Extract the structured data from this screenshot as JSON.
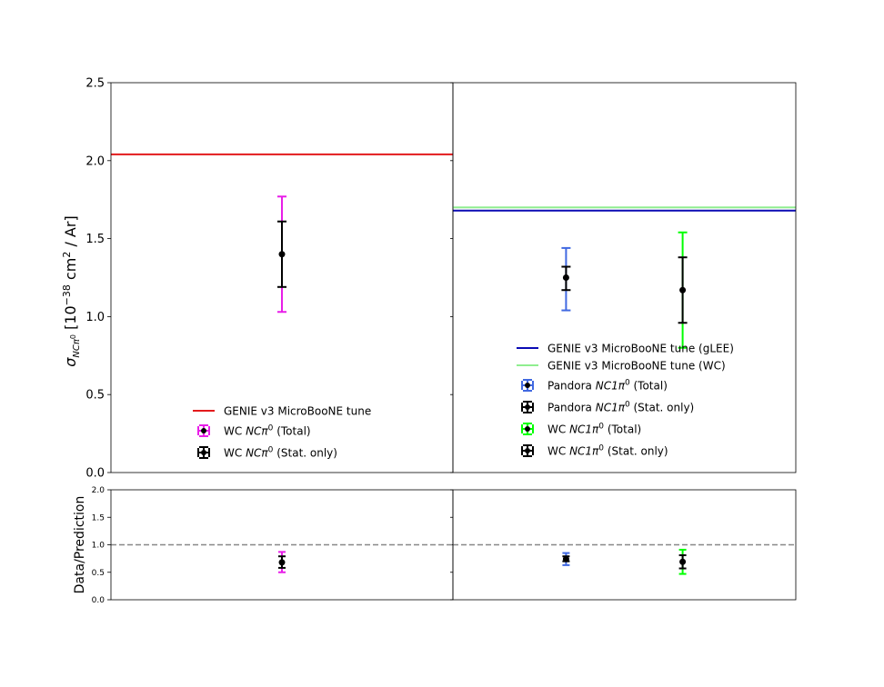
{
  "chart_data": [
    {
      "type": "scatter",
      "panel": "top-left",
      "ylabel": "σ_{NCπ⁰} [10⁻³⁸ cm² / Ar]",
      "ylim": [
        0,
        2.5
      ],
      "yticks": [
        "0.0",
        "0.5",
        "1.0",
        "1.5",
        "2.0",
        "2.5"
      ],
      "lines": [
        {
          "name": "GENIE v3 MicroBooNE tune",
          "y": 2.04,
          "color": "#e31a1c"
        }
      ],
      "points": [
        {
          "x": 0.5,
          "y": 1.4,
          "total_err": [
            1.03,
            1.77
          ],
          "stat_err": [
            1.19,
            1.61
          ],
          "total_color": "#e81ee8",
          "stat_color": "#000000"
        }
      ],
      "legend_position": "lower-center",
      "legend": [
        {
          "kind": "line",
          "color": "#e31a1c",
          "text": "GENIE v3 MicroBooNE tune"
        },
        {
          "kind": "err",
          "color": "#e81ee8",
          "pre": "WC ",
          "it": "NCπ",
          "sup": "0",
          "post": " (Total)"
        },
        {
          "kind": "err",
          "color": "#000000",
          "pre": "WC ",
          "it": "NCπ",
          "sup": "0",
          "post": " (Stat. only)"
        }
      ]
    },
    {
      "type": "scatter",
      "panel": "top-right",
      "ylim": [
        0,
        2.5
      ],
      "lines": [
        {
          "name": "GENIE v3 MicroBooNE tune (WC)",
          "y": 1.7,
          "color": "#90ee90"
        },
        {
          "name": "GENIE v3 MicroBooNE tune (gLEE)",
          "y": 1.68,
          "color": "#0a0ab4"
        }
      ],
      "points": [
        {
          "x": 0.33,
          "y": 1.25,
          "total_err": [
            1.04,
            1.44
          ],
          "stat_err": [
            1.17,
            1.32
          ],
          "total_color": "#4169e1",
          "stat_color": "#000000"
        },
        {
          "x": 0.67,
          "y": 1.17,
          "total_err": [
            0.8,
            1.54
          ],
          "stat_err": [
            0.96,
            1.38
          ],
          "total_color": "#00ff00",
          "stat_color": "#000000"
        }
      ],
      "legend_position": "lower-right",
      "legend": [
        {
          "kind": "line",
          "color": "#0a0ab4",
          "text": "GENIE v3 MicroBooNE tune (gLEE)"
        },
        {
          "kind": "line",
          "color": "#90ee90",
          "text": "GENIE v3 MicroBooNE tune (WC)"
        },
        {
          "kind": "err",
          "color": "#4169e1",
          "pre": "Pandora ",
          "it": "NC1π",
          "sup": "0",
          "post": " (Total)"
        },
        {
          "kind": "err",
          "color": "#000000",
          "pre": "Pandora ",
          "it": "NC1π",
          "sup": "0",
          "post": " (Stat. only)"
        },
        {
          "kind": "err",
          "color": "#00ff00",
          "pre": "WC ",
          "it": "NC1π",
          "sup": "0",
          "post": " (Total)"
        },
        {
          "kind": "err",
          "color": "#000000",
          "pre": "WC ",
          "it": "NC1π",
          "sup": "0",
          "post": " (Stat. only)"
        }
      ]
    },
    {
      "type": "scatter",
      "panel": "bottom-left",
      "ylabel": "Data/Prediction",
      "ylim": [
        0,
        2.0
      ],
      "yticks": [
        "0.0",
        "0.5",
        "1.0",
        "1.5",
        "2.0"
      ],
      "reference_line": {
        "y": 1.0,
        "color": "#888888",
        "style": "dashed"
      },
      "points": [
        {
          "x": 0.5,
          "y": 0.68,
          "total_err": [
            0.5,
            0.87
          ],
          "stat_err": [
            0.58,
            0.79
          ],
          "total_color": "#e81ee8",
          "stat_color": "#000000"
        }
      ]
    },
    {
      "type": "scatter",
      "panel": "bottom-right",
      "ylim": [
        0,
        2.0
      ],
      "reference_line": {
        "y": 1.0,
        "color": "#888888",
        "style": "dashed"
      },
      "points": [
        {
          "x": 0.33,
          "y": 0.74,
          "total_err": [
            0.63,
            0.85
          ],
          "stat_err": [
            0.7,
            0.79
          ],
          "total_color": "#4169e1",
          "stat_color": "#000000"
        },
        {
          "x": 0.67,
          "y": 0.69,
          "total_err": [
            0.47,
            0.91
          ],
          "stat_err": [
            0.57,
            0.81
          ],
          "total_color": "#00ff00",
          "stat_color": "#000000"
        }
      ]
    }
  ]
}
